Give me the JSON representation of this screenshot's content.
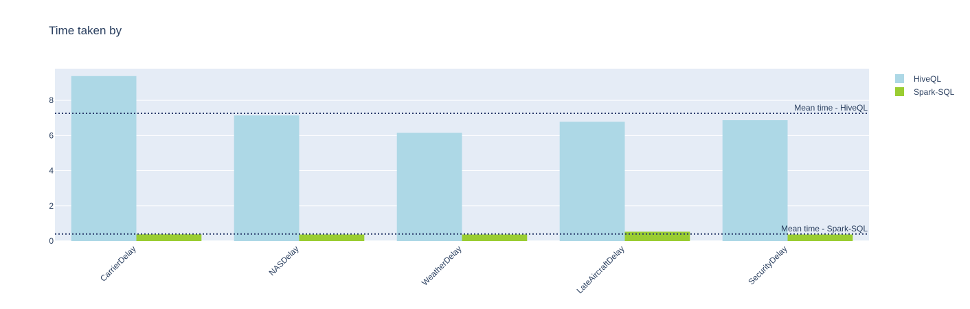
{
  "chart_data": {
    "type": "bar",
    "title": "Time taken by",
    "xlabel": "",
    "ylabel": "",
    "categories": [
      "CarrierDelay",
      "NASDelay",
      "WeatherDelay",
      "LateAircraftDelay",
      "SecurityDelay"
    ],
    "series": [
      {
        "name": "HiveQL",
        "values": [
          9.38,
          7.14,
          6.15,
          6.78,
          6.87
        ],
        "color": "#add8e6"
      },
      {
        "name": "Spark-SQL",
        "values": [
          0.38,
          0.37,
          0.37,
          0.53,
          0.37
        ],
        "color": "#9acd32"
      }
    ],
    "ylim": [
      0,
      9.8
    ],
    "yticks": [
      0,
      2,
      4,
      6,
      8
    ],
    "grid": true,
    "legend_position": "top-right",
    "reference_lines": [
      {
        "label": "Mean time - HiveQL",
        "value": 7.26,
        "style": "dotted",
        "color": "#2a3b6b"
      },
      {
        "label": "Mean time - Spark-SQL",
        "value": 0.4,
        "style": "dotted",
        "color": "#2a3b6b"
      }
    ],
    "plot_background": "#e5ecf6",
    "grid_color": "#ffffff",
    "text_color": "#2a3f5f"
  }
}
